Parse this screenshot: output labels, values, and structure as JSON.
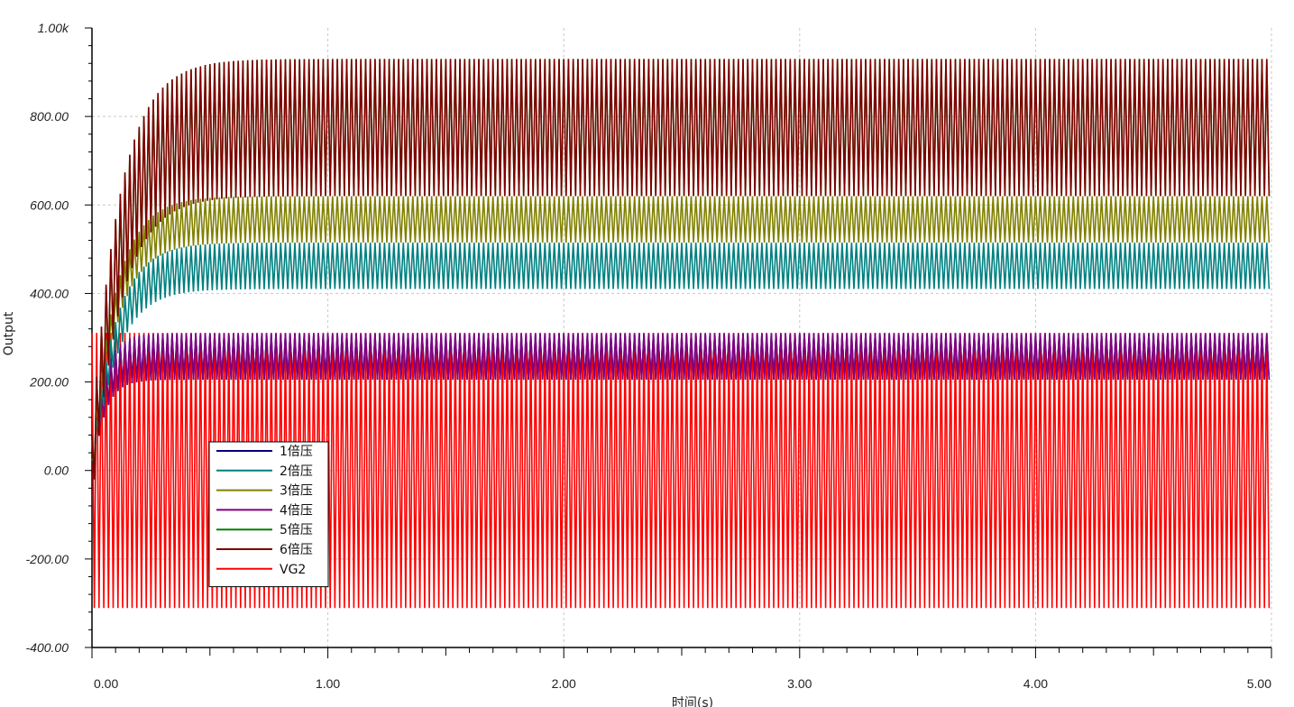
{
  "chart_data": {
    "type": "line",
    "xlabel": "时间(s)",
    "ylabel": "Output",
    "xlim": [
      0,
      5
    ],
    "ylim": [
      -400,
      1000
    ],
    "x_ticks": [
      "0.00",
      "1.00",
      "2.00",
      "3.00",
      "4.00",
      "5.00"
    ],
    "y_ticks": [
      "1.00k",
      "800.00",
      "600.00",
      "400.00",
      "200.00",
      "0.00",
      "-200.00",
      "-400.00"
    ],
    "grid": true,
    "legend_position": "bottom-left",
    "colors": {
      "s1": "#000080",
      "s2": "#008080",
      "s3": "#808000",
      "s4": "#800080",
      "s5": "#008000",
      "s6": "#800000",
      "vg2": "#ff0000"
    },
    "series": [
      {
        "name": "1倍压",
        "color": "#000080",
        "steady_min": 205,
        "steady_max": 310,
        "rise_time_s": 0.15
      },
      {
        "name": "2倍压",
        "color": "#008080",
        "steady_min": 410,
        "steady_max": 515,
        "rise_time_s": 0.3
      },
      {
        "name": "3倍压",
        "color": "#808000",
        "steady_min": 515,
        "steady_max": 620,
        "rise_time_s": 0.3
      },
      {
        "name": "4倍压",
        "color": "#800080",
        "steady_min": 205,
        "steady_max": 310,
        "rise_time_s": 0.15
      },
      {
        "name": "5倍压",
        "color": "#008000",
        "steady_min": 620,
        "steady_max": 930,
        "rise_time_s": 0.35
      },
      {
        "name": "6倍压",
        "color": "#800000",
        "steady_min": 620,
        "steady_max": 930,
        "rise_time_s": 0.35
      },
      {
        "name": "VG2",
        "color": "#ff0000",
        "steady_min": -311,
        "steady_max": 311,
        "rise_time_s": 0
      }
    ],
    "oscillation_cycles_full_range": 250
  }
}
